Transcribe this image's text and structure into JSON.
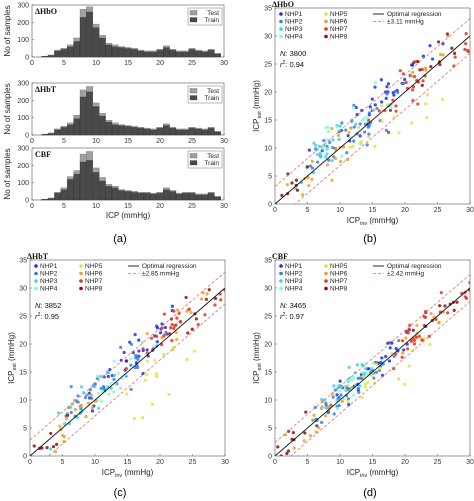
{
  "figure_labels": [
    "(a)",
    "(b)",
    "(c)",
    "(d)"
  ],
  "colors": {
    "test_bar": "#a0a0a0",
    "train_bar": "#4a4a4a",
    "regression": "#111111",
    "band": "#e07070",
    "subjects": [
      "#1f2fd8",
      "#2f7fe8",
      "#40d0e8",
      "#7fffd0",
      "#d8e840",
      "#f0a020",
      "#e83020",
      "#8a1010"
    ]
  },
  "chart_data": [
    {
      "type": "bar",
      "panel": "a",
      "title": "ΔHbO",
      "xlabel": "",
      "ylabel": "No of samples",
      "xlim": [
        0,
        30
      ],
      "ylim": [
        0,
        300
      ],
      "yticks": [
        0,
        100,
        200,
        300
      ],
      "xticks": [
        0,
        5,
        10,
        15,
        20,
        25,
        30
      ],
      "legend": [
        "Test",
        "Train"
      ],
      "legend_position": "top-right",
      "bins": [
        2,
        3,
        4,
        5,
        6,
        7,
        8,
        9,
        10,
        11,
        12,
        13,
        14,
        15,
        16,
        17,
        18,
        19,
        20,
        21,
        22,
        23,
        24,
        25,
        26,
        27,
        28,
        29
      ],
      "series": [
        {
          "name": "Train",
          "values": [
            5,
            10,
            35,
            45,
            60,
            90,
            230,
            260,
            170,
            110,
            70,
            60,
            55,
            50,
            45,
            35,
            30,
            30,
            40,
            55,
            40,
            30,
            30,
            45,
            35,
            30,
            40,
            20
          ]
        },
        {
          "name": "Test",
          "values": [
            0,
            2,
            5,
            5,
            10,
            20,
            45,
            30,
            20,
            15,
            10,
            10,
            5,
            5,
            5,
            5,
            5,
            5,
            5,
            10,
            5,
            5,
            5,
            5,
            5,
            5,
            5,
            0
          ]
        }
      ]
    },
    {
      "type": "bar",
      "panel": "a",
      "title": "ΔHbT",
      "xlabel": "",
      "ylabel": "No of samples",
      "xlim": [
        0,
        30
      ],
      "ylim": [
        0,
        300
      ],
      "yticks": [
        0,
        100,
        200,
        300
      ],
      "xticks": [
        0,
        5,
        10,
        15,
        20,
        25,
        30
      ],
      "legend": [
        "Test",
        "Train"
      ],
      "legend_position": "top-right",
      "bins": [
        2,
        3,
        4,
        5,
        6,
        7,
        8,
        9,
        10,
        11,
        12,
        13,
        14,
        15,
        16,
        17,
        18,
        19,
        20,
        21,
        22,
        23,
        24,
        25,
        26,
        27,
        28,
        29
      ],
      "series": [
        {
          "name": "Train",
          "values": [
            5,
            10,
            30,
            45,
            60,
            95,
            220,
            250,
            165,
            110,
            75,
            60,
            55,
            50,
            45,
            40,
            35,
            30,
            40,
            55,
            40,
            30,
            30,
            40,
            35,
            30,
            40,
            20
          ]
        },
        {
          "name": "Test",
          "values": [
            0,
            2,
            5,
            5,
            10,
            20,
            40,
            30,
            20,
            15,
            10,
            10,
            5,
            5,
            5,
            5,
            5,
            5,
            5,
            10,
            5,
            5,
            5,
            5,
            5,
            5,
            5,
            0
          ]
        }
      ]
    },
    {
      "type": "bar",
      "panel": "a",
      "title": "CBF",
      "xlabel": "ICP (mmHg)",
      "ylabel": "No of samples",
      "xlim": [
        0,
        30
      ],
      "ylim": [
        0,
        300
      ],
      "yticks": [
        0,
        100,
        200,
        300
      ],
      "xticks": [
        0,
        5,
        10,
        15,
        20,
        25,
        30
      ],
      "legend": [
        "Test",
        "Train"
      ],
      "legend_position": "top-right",
      "bins": [
        2,
        3,
        4,
        5,
        6,
        7,
        8,
        9,
        10,
        11,
        12,
        13,
        14,
        15,
        16,
        17,
        18,
        19,
        20,
        21,
        22,
        23,
        24,
        25,
        26,
        27,
        28,
        29
      ],
      "series": [
        {
          "name": "Train",
          "values": [
            5,
            10,
            40,
            60,
            120,
            150,
            220,
            230,
            160,
            110,
            80,
            70,
            55,
            50,
            45,
            40,
            40,
            35,
            40,
            60,
            50,
            35,
            40,
            40,
            30,
            30,
            40,
            20
          ]
        },
        {
          "name": "Test",
          "values": [
            0,
            2,
            5,
            10,
            15,
            20,
            45,
            50,
            25,
            20,
            10,
            10,
            5,
            5,
            5,
            5,
            5,
            5,
            5,
            10,
            5,
            5,
            5,
            5,
            5,
            5,
            5,
            0
          ]
        }
      ]
    },
    {
      "type": "scatter",
      "panel": "b",
      "title": "ΔHbO",
      "xlabel": "ICP",
      "xlabel_sub": "inv",
      "xlabel_unit": " (mmHg)",
      "ylabel": "ICP",
      "ylabel_sub": "est",
      "ylabel_unit": " (mmHg)",
      "xlim": [
        0,
        30
      ],
      "ylim": [
        0,
        35
      ],
      "xticks": [
        0,
        5,
        10,
        15,
        20,
        25,
        30
      ],
      "yticks": [
        0,
        5,
        10,
        15,
        20,
        25,
        30,
        35
      ],
      "N_label": "N:",
      "N": "3800",
      "r2_label": "r",
      "r2_sup": "2",
      "r2": ": 0.94",
      "band": 3.11,
      "legend_entries": [
        "NHP1",
        "NHP2",
        "NHP3",
        "NHP4",
        "NHP5",
        "NHP6",
        "NHP7",
        "NHP8",
        "Optimal regression",
        "±3.11 mmHg"
      ],
      "spread": 3.0,
      "clusters": [
        {
          "series": "NHP1",
          "x": 19,
          "y": 21,
          "n": 24
        },
        {
          "series": "NHP1",
          "x": 12,
          "y": 14,
          "n": 18
        },
        {
          "series": "NHP2",
          "x": 10,
          "y": 11,
          "n": 20
        },
        {
          "series": "NHP2",
          "x": 16,
          "y": 16,
          "n": 16
        },
        {
          "series": "NHP3",
          "x": 8,
          "y": 10,
          "n": 24
        },
        {
          "series": "NHP4",
          "x": 11,
          "y": 13,
          "n": 18
        },
        {
          "series": "NHP5",
          "x": 14,
          "y": 13,
          "n": 14
        },
        {
          "series": "NHP5",
          "x": 22,
          "y": 16,
          "n": 6
        },
        {
          "series": "NHP6",
          "x": 7,
          "y": 7,
          "n": 18
        },
        {
          "series": "NHP6",
          "x": 24,
          "y": 25,
          "n": 10
        },
        {
          "series": "NHP7",
          "x": 21,
          "y": 21,
          "n": 22
        },
        {
          "series": "NHP7",
          "x": 28,
          "y": 28,
          "n": 10
        },
        {
          "series": "NHP8",
          "x": 2.5,
          "y": 2.5,
          "n": 10
        },
        {
          "series": "NHP8",
          "x": 25,
          "y": 26,
          "n": 10
        }
      ]
    },
    {
      "type": "scatter",
      "panel": "c",
      "title": "ΔHbT",
      "xlabel": "ICP",
      "xlabel_sub": "inv",
      "xlabel_unit": " (mmHg)",
      "ylabel": "ICP",
      "ylabel_sub": "est",
      "ylabel_unit": " (mmHg)",
      "xlim": [
        0,
        30
      ],
      "ylim": [
        0,
        35
      ],
      "xticks": [
        0,
        5,
        10,
        15,
        20,
        25,
        30
      ],
      "yticks": [
        0,
        5,
        10,
        15,
        20,
        25,
        30,
        35
      ],
      "N_label": "N:",
      "N": "3852",
      "r2_label": "r",
      "r2_sup": "2",
      "r2": ": 0.95",
      "band": 2.85,
      "legend_entries": [
        "NHP1",
        "NHP2",
        "NHP3",
        "NHP4",
        "NHP5",
        "NHP6",
        "NHP7",
        "NHP8",
        "Optimal regression",
        "±2.85 mmHg"
      ],
      "spread": 2.7,
      "clusters": [
        {
          "series": "NHP1",
          "x": 18,
          "y": 20,
          "n": 24
        },
        {
          "series": "NHP1",
          "x": 11,
          "y": 12,
          "n": 16
        },
        {
          "series": "NHP2",
          "x": 9,
          "y": 10,
          "n": 20
        },
        {
          "series": "NHP2",
          "x": 15,
          "y": 15,
          "n": 16
        },
        {
          "series": "NHP3",
          "x": 8,
          "y": 9,
          "n": 22
        },
        {
          "series": "NHP4",
          "x": 13,
          "y": 14,
          "n": 18
        },
        {
          "series": "NHP5",
          "x": 20,
          "y": 17,
          "n": 10
        },
        {
          "series": "NHP5",
          "x": 22,
          "y": 14,
          "n": 6
        },
        {
          "series": "NHP6",
          "x": 7,
          "y": 7,
          "n": 18
        },
        {
          "series": "NHP6",
          "x": 23,
          "y": 24,
          "n": 12
        },
        {
          "series": "NHP7",
          "x": 21,
          "y": 22,
          "n": 22
        },
        {
          "series": "NHP7",
          "x": 28,
          "y": 27,
          "n": 10
        },
        {
          "series": "NHP8",
          "x": 2.5,
          "y": 2.5,
          "n": 10
        },
        {
          "series": "NHP8",
          "x": 25,
          "y": 26,
          "n": 10
        }
      ]
    },
    {
      "type": "scatter",
      "panel": "d",
      "title": "CBF",
      "xlabel": "ICP",
      "xlabel_sub": "inv",
      "xlabel_unit": " (mmHg)",
      "ylabel": "ICP",
      "ylabel_sub": "est",
      "ylabel_unit": " (mmHg)",
      "xlim": [
        0,
        30
      ],
      "ylim": [
        0,
        35
      ],
      "xticks": [
        0,
        5,
        10,
        15,
        20,
        25,
        30
      ],
      "yticks": [
        0,
        5,
        10,
        15,
        20,
        25,
        30,
        35
      ],
      "N_label": "N:",
      "N": "3465",
      "r2_label": "r",
      "r2_sup": "2",
      "r2": ": 0.97",
      "band": 2.42,
      "legend_entries": [
        "NHP1",
        "NHP2",
        "NHP3",
        "NHP4",
        "NHP5",
        "NHP6",
        "NHP7",
        "NHP8",
        "Optimal regression",
        "±2.42 mmHg"
      ],
      "spread": 2.2,
      "clusters": [
        {
          "series": "NHP1",
          "x": 18,
          "y": 19,
          "n": 24
        },
        {
          "series": "NHP1",
          "x": 10,
          "y": 11,
          "n": 14
        },
        {
          "series": "NHP2",
          "x": 9,
          "y": 10,
          "n": 20
        },
        {
          "series": "NHP2",
          "x": 15,
          "y": 15,
          "n": 16
        },
        {
          "series": "NHP3",
          "x": 10,
          "y": 12,
          "n": 22
        },
        {
          "series": "NHP4",
          "x": 12,
          "y": 13,
          "n": 18
        },
        {
          "series": "NHP5",
          "x": 14,
          "y": 13,
          "n": 12
        },
        {
          "series": "NHP5",
          "x": 22,
          "y": 18,
          "n": 6
        },
        {
          "series": "NHP6",
          "x": 7,
          "y": 7,
          "n": 18
        },
        {
          "series": "NHP6",
          "x": 23,
          "y": 23,
          "n": 12
        },
        {
          "series": "NHP7",
          "x": 21,
          "y": 21,
          "n": 22
        },
        {
          "series": "NHP7",
          "x": 28,
          "y": 28,
          "n": 10
        },
        {
          "series": "NHP8",
          "x": 2.5,
          "y": 2.5,
          "n": 10
        },
        {
          "series": "NHP8",
          "x": 26,
          "y": 26,
          "n": 10
        }
      ]
    }
  ]
}
